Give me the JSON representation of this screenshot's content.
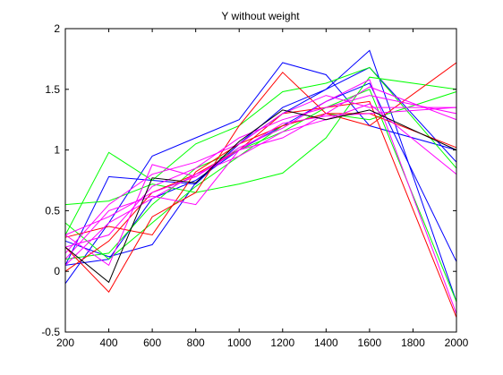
{
  "chart_data": {
    "type": "line",
    "title": "Y without weight",
    "xlabel": "",
    "ylabel": "",
    "xlim": [
      200,
      2000
    ],
    "ylim": [
      -0.5,
      2
    ],
    "xticks": [
      200,
      400,
      600,
      800,
      1000,
      1200,
      1400,
      1600,
      1800,
      2000
    ],
    "yticks": [
      -0.5,
      0,
      0.5,
      1,
      1.5,
      2
    ],
    "xtick_labels": [
      "200",
      "400",
      "600",
      "800",
      "1000",
      "1200",
      "1400",
      "1600",
      "1800",
      "2000"
    ],
    "ytick_labels": [
      "-0.5",
      "0",
      "0.5",
      "1",
      "1.5",
      "2"
    ],
    "grid": false,
    "legend": "none",
    "x": [
      200,
      400,
      600,
      800,
      1000,
      1200,
      1400,
      1600,
      2000
    ],
    "series": [
      {
        "color": "#0000ff",
        "values": [
          -0.1,
          0.4,
          0.95,
          1.1,
          1.25,
          1.72,
          1.62,
          1.2,
          1.0
        ]
      },
      {
        "color": "#0000ff",
        "values": [
          0.05,
          0.78,
          0.75,
          0.72,
          1.05,
          1.3,
          1.5,
          1.82,
          -0.25
        ]
      },
      {
        "color": "#0000ff",
        "values": [
          0.25,
          0.12,
          0.22,
          0.73,
          1.05,
          1.35,
          1.5,
          1.68,
          0.9
        ]
      },
      {
        "color": "#0000ff",
        "values": [
          0.05,
          0.1,
          0.6,
          0.75,
          1.0,
          1.2,
          1.4,
          1.55,
          0.08
        ]
      },
      {
        "color": "#00ff00",
        "values": [
          0.55,
          0.58,
          0.72,
          0.65,
          0.72,
          0.81,
          1.1,
          1.6,
          1.5
        ]
      },
      {
        "color": "#00ff00",
        "values": [
          0.3,
          0.98,
          0.75,
          1.05,
          1.2,
          1.48,
          1.55,
          1.68,
          0.85
        ]
      },
      {
        "color": "#00ff00",
        "values": [
          0.1,
          0.15,
          0.55,
          0.85,
          1.0,
          1.15,
          1.35,
          1.5,
          -0.25
        ]
      },
      {
        "color": "#00ff00",
        "values": [
          0.4,
          0.1,
          0.4,
          0.7,
          0.95,
          1.2,
          1.3,
          1.25,
          1.48
        ]
      },
      {
        "color": "#ff0000",
        "values": [
          0.2,
          -0.17,
          0.45,
          0.65,
          1.2,
          1.64,
          1.3,
          1.2,
          1.72
        ]
      },
      {
        "color": "#ff0000",
        "values": [
          0.0,
          0.25,
          0.65,
          0.8,
          1.0,
          1.3,
          1.35,
          1.4,
          -0.38
        ]
      },
      {
        "color": "#ff0000",
        "values": [
          0.28,
          0.37,
          0.3,
          0.82,
          1.05,
          1.2,
          1.3,
          1.3,
          1.02
        ]
      },
      {
        "color": "#ff00ff",
        "values": [
          0.3,
          0.05,
          0.88,
          0.78,
          1.02,
          1.18,
          1.4,
          1.58,
          -0.35
        ]
      },
      {
        "color": "#ff00ff",
        "values": [
          0.1,
          0.5,
          0.62,
          0.55,
          1.0,
          1.1,
          1.3,
          1.52,
          1.25
        ]
      },
      {
        "color": "#ff00ff",
        "values": [
          0.15,
          0.55,
          0.8,
          0.9,
          1.05,
          1.3,
          1.45,
          1.35,
          1.35
        ]
      },
      {
        "color": "#ff00ff",
        "values": [
          0.2,
          0.3,
          0.7,
          0.85,
          1.1,
          1.25,
          1.35,
          1.45,
          1.3
        ]
      },
      {
        "color": "#ff00ff",
        "values": [
          0.05,
          0.4,
          0.6,
          0.8,
          0.95,
          1.15,
          1.25,
          1.38,
          0.8
        ]
      },
      {
        "color": "#ff00ff",
        "values": [
          0.3,
          0.45,
          0.65,
          0.78,
          1.0,
          1.22,
          1.28,
          1.3,
          1.35
        ]
      },
      {
        "color": "#000000",
        "values": [
          0.2,
          -0.09,
          0.77,
          0.73,
          1.07,
          1.33,
          1.25,
          1.33,
          1.0
        ]
      }
    ]
  }
}
